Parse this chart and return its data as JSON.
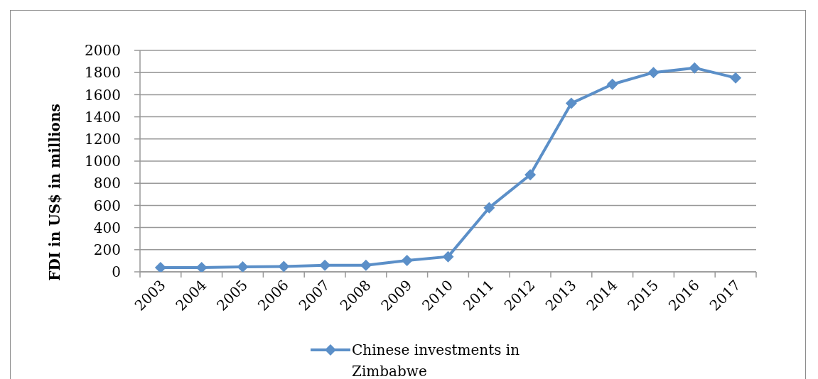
{
  "chart_data": {
    "type": "line",
    "ylabel": "FDI in US$ in millions",
    "categories": [
      "2003",
      "2004",
      "2005",
      "2006",
      "2007",
      "2008",
      "2009",
      "2010",
      "2011",
      "2012",
      "2013",
      "2014",
      "2015",
      "2016",
      "2017"
    ],
    "series": [
      {
        "name": "Chinese investments in Zimbabwe",
        "color": "#5b8fc8",
        "values": [
          38,
          39,
          45,
          48,
          59,
          59,
          103,
          137,
          579,
          877,
          1522,
          1694,
          1800,
          1842,
          1752
        ]
      }
    ],
    "ylim": [
      0,
      2000
    ],
    "yticks": [
      0,
      200,
      400,
      600,
      800,
      1000,
      1200,
      1400,
      1600,
      1800,
      2000
    ],
    "grid": "y",
    "legend": "bottom",
    "marker": "diamond",
    "line_style": "solid"
  }
}
